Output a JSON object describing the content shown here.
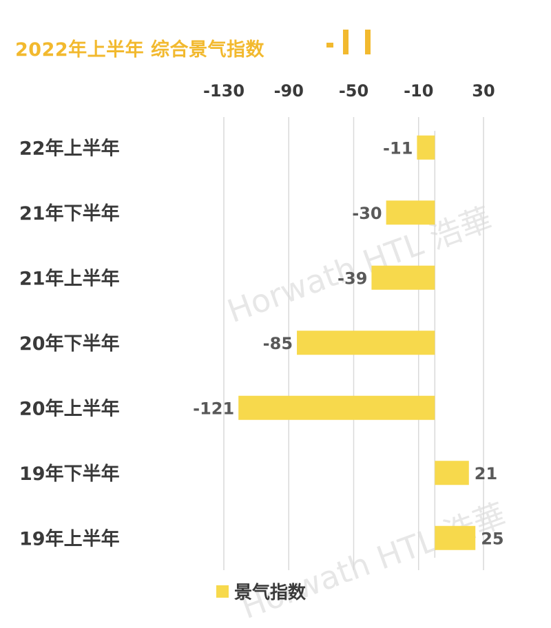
{
  "title": "2022年上半年  综合景气指数",
  "watermark": "Horwath HTL 浩華",
  "colors": {
    "bar": "#f7d94c",
    "title": "#f2b92e",
    "grid": "#d9d9d9",
    "label": "#595959",
    "category": "#3a3a3a"
  },
  "chart_data": {
    "type": "bar",
    "orientation": "horizontal",
    "categories": [
      "22年上半年",
      "21年下半年",
      "21年上半年",
      "20年下半年",
      "20年上半年",
      "19年下半年",
      "19年上半年"
    ],
    "series": [
      {
        "name": "景气指数",
        "values": [
          -11,
          -30,
          -39,
          -85,
          -121,
          21,
          25
        ]
      }
    ],
    "x_ticks": [
      -130,
      -90,
      -50,
      -10,
      30
    ],
    "xlim": [
      -130,
      30
    ],
    "axis_position": "top",
    "grid": true,
    "legend": "bottom"
  }
}
